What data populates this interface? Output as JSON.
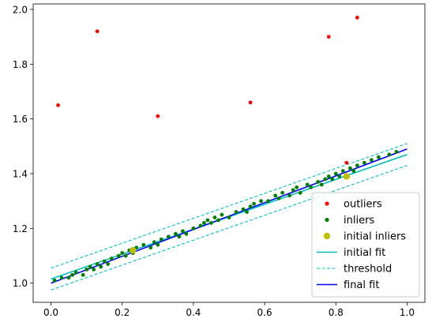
{
  "chart_data": {
    "type": "scatter",
    "xlim": [
      -0.05,
      1.05
    ],
    "ylim": [
      0.93,
      2.02
    ],
    "x_ticks": [
      "0.0",
      "0.2",
      "0.4",
      "0.6",
      "0.8",
      "1.0"
    ],
    "y_ticks": [
      "1.0",
      "1.2",
      "1.4",
      "1.6",
      "1.8",
      "2.0"
    ],
    "grid": false,
    "legend_position": "lower-right",
    "series": [
      {
        "name": "outliers",
        "kind": "points",
        "color": "#ff0000",
        "x": [
          0.02,
          0.13,
          0.3,
          0.56,
          0.78,
          0.86,
          0.83
        ],
        "y": [
          1.65,
          1.92,
          1.61,
          1.66,
          1.9,
          1.97,
          1.44
        ]
      },
      {
        "name": "inliers",
        "kind": "points",
        "color": "#008000",
        "x": [
          0.01,
          0.03,
          0.05,
          0.06,
          0.07,
          0.09,
          0.1,
          0.11,
          0.12,
          0.13,
          0.14,
          0.15,
          0.16,
          0.17,
          0.19,
          0.2,
          0.21,
          0.22,
          0.23,
          0.24,
          0.26,
          0.28,
          0.29,
          0.3,
          0.31,
          0.33,
          0.35,
          0.36,
          0.37,
          0.38,
          0.4,
          0.42,
          0.43,
          0.44,
          0.45,
          0.46,
          0.47,
          0.48,
          0.5,
          0.52,
          0.54,
          0.55,
          0.56,
          0.57,
          0.59,
          0.61,
          0.63,
          0.64,
          0.65,
          0.67,
          0.68,
          0.69,
          0.7,
          0.72,
          0.73,
          0.75,
          0.76,
          0.77,
          0.78,
          0.79,
          0.8,
          0.81,
          0.82,
          0.84,
          0.85,
          0.86,
          0.88,
          0.9,
          0.92,
          0.95,
          0.97
        ],
        "y": [
          1.01,
          1.02,
          1.02,
          1.03,
          1.04,
          1.03,
          1.05,
          1.06,
          1.05,
          1.07,
          1.06,
          1.08,
          1.07,
          1.09,
          1.1,
          1.11,
          1.1,
          1.12,
          1.11,
          1.13,
          1.14,
          1.13,
          1.15,
          1.14,
          1.16,
          1.17,
          1.18,
          1.17,
          1.19,
          1.18,
          1.2,
          1.21,
          1.22,
          1.23,
          1.22,
          1.24,
          1.23,
          1.25,
          1.24,
          1.26,
          1.27,
          1.26,
          1.28,
          1.29,
          1.3,
          1.3,
          1.32,
          1.31,
          1.33,
          1.32,
          1.34,
          1.35,
          1.33,
          1.36,
          1.35,
          1.37,
          1.36,
          1.38,
          1.39,
          1.38,
          1.4,
          1.39,
          1.41,
          1.42,
          1.41,
          1.43,
          1.44,
          1.45,
          1.46,
          1.47,
          1.48
        ]
      },
      {
        "name": "initial inliers",
        "kind": "points",
        "color": "#bfbf00",
        "x": [
          0.23,
          0.83
        ],
        "y": [
          1.12,
          1.39
        ]
      },
      {
        "name": "initial fit",
        "kind": "line",
        "color": "#00bfbf",
        "dash": false,
        "x": [
          0.0,
          1.0
        ],
        "y": [
          1.015,
          1.47
        ]
      },
      {
        "name": "threshold",
        "kind": "line",
        "color": "#00bfbf",
        "dash": true,
        "x": [
          0.0,
          1.0
        ],
        "y": [
          1.055,
          1.51
        ]
      },
      {
        "name": "threshold",
        "kind": "line",
        "color": "#00bfbf",
        "dash": true,
        "legend": false,
        "x": [
          0.0,
          1.0
        ],
        "y": [
          0.975,
          1.43
        ]
      },
      {
        "name": "final fit",
        "kind": "line",
        "color": "#0000ff",
        "dash": false,
        "x": [
          0.0,
          1.0
        ],
        "y": [
          1.0,
          1.49
        ]
      }
    ]
  }
}
